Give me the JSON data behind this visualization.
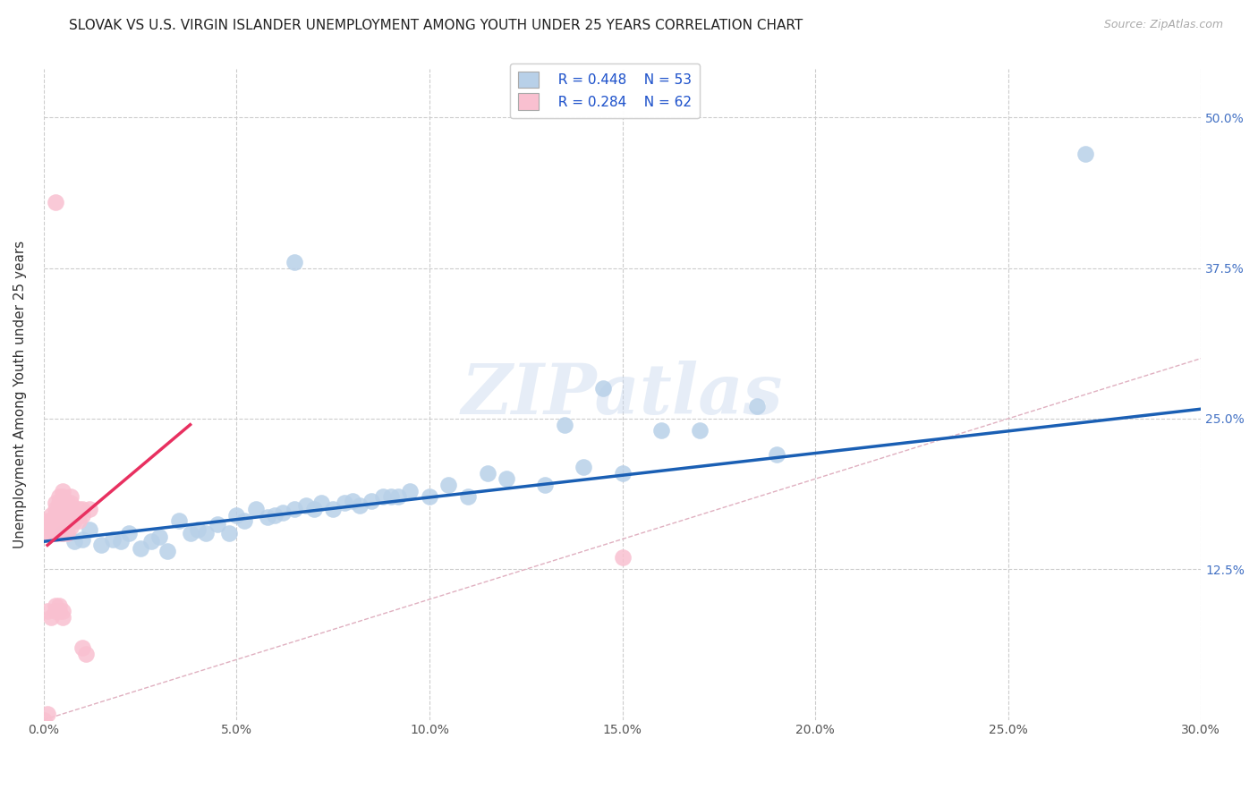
{
  "title": "SLOVAK VS U.S. VIRGIN ISLANDER UNEMPLOYMENT AMONG YOUTH UNDER 25 YEARS CORRELATION CHART",
  "source": "Source: ZipAtlas.com",
  "ylabel": "Unemployment Among Youth under 25 years",
  "xlim": [
    0.0,
    0.3
  ],
  "ylim": [
    0.0,
    0.54
  ],
  "right_ytick_labels": [
    "12.5%",
    "25.0%",
    "37.5%",
    "50.0%"
  ],
  "right_ytick_values": [
    0.125,
    0.25,
    0.375,
    0.5
  ],
  "xtick_labels": [
    "0.0%",
    "",
    "5.0%",
    "",
    "10.0%",
    "",
    "15.0%",
    "",
    "20.0%",
    "",
    "25.0%",
    "",
    "30.0%"
  ],
  "xtick_values": [
    0.0,
    0.025,
    0.05,
    0.075,
    0.1,
    0.125,
    0.15,
    0.175,
    0.2,
    0.225,
    0.25,
    0.275,
    0.3
  ],
  "xtick_major_labels": [
    "0.0%",
    "5.0%",
    "10.0%",
    "15.0%",
    "20.0%",
    "25.0%",
    "30.0%"
  ],
  "xtick_major_values": [
    0.0,
    0.05,
    0.1,
    0.15,
    0.2,
    0.25,
    0.3
  ],
  "legend_r_blue": "R = 0.448",
  "legend_n_blue": "N = 53",
  "legend_r_pink": "R = 0.284",
  "legend_n_pink": "N = 62",
  "watermark": "ZIPatlas",
  "blue_fill": "#b8d0e8",
  "blue_edge": "#7aadcf",
  "pink_fill": "#f9c0d0",
  "pink_edge": "#f080a0",
  "blue_line_color": "#1a5fb4",
  "pink_line_color": "#e83060",
  "blue_scatter": [
    [
      0.005,
      0.155
    ],
    [
      0.008,
      0.148
    ],
    [
      0.01,
      0.15
    ],
    [
      0.012,
      0.158
    ],
    [
      0.015,
      0.145
    ],
    [
      0.018,
      0.15
    ],
    [
      0.02,
      0.148
    ],
    [
      0.022,
      0.155
    ],
    [
      0.025,
      0.142
    ],
    [
      0.028,
      0.148
    ],
    [
      0.03,
      0.152
    ],
    [
      0.032,
      0.14
    ],
    [
      0.035,
      0.165
    ],
    [
      0.038,
      0.155
    ],
    [
      0.04,
      0.158
    ],
    [
      0.042,
      0.155
    ],
    [
      0.045,
      0.162
    ],
    [
      0.048,
      0.155
    ],
    [
      0.05,
      0.17
    ],
    [
      0.052,
      0.165
    ],
    [
      0.055,
      0.175
    ],
    [
      0.058,
      0.168
    ],
    [
      0.06,
      0.17
    ],
    [
      0.062,
      0.172
    ],
    [
      0.065,
      0.175
    ],
    [
      0.068,
      0.178
    ],
    [
      0.07,
      0.175
    ],
    [
      0.072,
      0.18
    ],
    [
      0.075,
      0.175
    ],
    [
      0.078,
      0.18
    ],
    [
      0.08,
      0.182
    ],
    [
      0.082,
      0.178
    ],
    [
      0.085,
      0.182
    ],
    [
      0.088,
      0.185
    ],
    [
      0.09,
      0.185
    ],
    [
      0.092,
      0.185
    ],
    [
      0.095,
      0.19
    ],
    [
      0.1,
      0.185
    ],
    [
      0.105,
      0.195
    ],
    [
      0.11,
      0.185
    ],
    [
      0.115,
      0.205
    ],
    [
      0.12,
      0.2
    ],
    [
      0.13,
      0.195
    ],
    [
      0.135,
      0.245
    ],
    [
      0.14,
      0.21
    ],
    [
      0.145,
      0.275
    ],
    [
      0.15,
      0.205
    ],
    [
      0.16,
      0.24
    ],
    [
      0.17,
      0.24
    ],
    [
      0.185,
      0.26
    ],
    [
      0.19,
      0.22
    ],
    [
      0.27,
      0.47
    ],
    [
      0.065,
      0.38
    ]
  ],
  "pink_scatter": [
    [
      0.001,
      0.155
    ],
    [
      0.001,
      0.16
    ],
    [
      0.001,
      0.165
    ],
    [
      0.002,
      0.155
    ],
    [
      0.002,
      0.16
    ],
    [
      0.002,
      0.165
    ],
    [
      0.002,
      0.17
    ],
    [
      0.003,
      0.155
    ],
    [
      0.003,
      0.16
    ],
    [
      0.003,
      0.165
    ],
    [
      0.003,
      0.17
    ],
    [
      0.003,
      0.175
    ],
    [
      0.003,
      0.18
    ],
    [
      0.004,
      0.155
    ],
    [
      0.004,
      0.16
    ],
    [
      0.004,
      0.165
    ],
    [
      0.004,
      0.17
    ],
    [
      0.004,
      0.175
    ],
    [
      0.004,
      0.18
    ],
    [
      0.004,
      0.185
    ],
    [
      0.005,
      0.155
    ],
    [
      0.005,
      0.16
    ],
    [
      0.005,
      0.165
    ],
    [
      0.005,
      0.17
    ],
    [
      0.005,
      0.175
    ],
    [
      0.005,
      0.18
    ],
    [
      0.005,
      0.185
    ],
    [
      0.005,
      0.19
    ],
    [
      0.006,
      0.155
    ],
    [
      0.006,
      0.16
    ],
    [
      0.006,
      0.165
    ],
    [
      0.006,
      0.17
    ],
    [
      0.006,
      0.175
    ],
    [
      0.006,
      0.18
    ],
    [
      0.007,
      0.16
    ],
    [
      0.007,
      0.165
    ],
    [
      0.007,
      0.17
    ],
    [
      0.007,
      0.175
    ],
    [
      0.007,
      0.18
    ],
    [
      0.007,
      0.185
    ],
    [
      0.008,
      0.165
    ],
    [
      0.008,
      0.17
    ],
    [
      0.009,
      0.165
    ],
    [
      0.009,
      0.17
    ],
    [
      0.009,
      0.175
    ],
    [
      0.01,
      0.17
    ],
    [
      0.01,
      0.175
    ],
    [
      0.012,
      0.175
    ],
    [
      0.001,
      0.09
    ],
    [
      0.002,
      0.085
    ],
    [
      0.003,
      0.09
    ],
    [
      0.003,
      0.095
    ],
    [
      0.004,
      0.09
    ],
    [
      0.004,
      0.095
    ],
    [
      0.005,
      0.085
    ],
    [
      0.005,
      0.09
    ],
    [
      0.01,
      0.06
    ],
    [
      0.011,
      0.055
    ],
    [
      0.0,
      0.0
    ],
    [
      0.001,
      0.005
    ],
    [
      0.003,
      0.43
    ],
    [
      0.15,
      0.135
    ]
  ],
  "blue_trend_x": [
    0.0,
    0.3
  ],
  "blue_trend_y": [
    0.148,
    0.258
  ],
  "pink_trend_x": [
    0.001,
    0.038
  ],
  "pink_trend_y": [
    0.145,
    0.245
  ],
  "ref_line_x": [
    0.0,
    0.54
  ],
  "ref_line_y": [
    0.0,
    0.54
  ],
  "grid_color": "#cccccc",
  "bg_color": "#ffffff",
  "title_fontsize": 11,
  "axis_label_fontsize": 11,
  "tick_fontsize": 10,
  "legend_fontsize": 11
}
